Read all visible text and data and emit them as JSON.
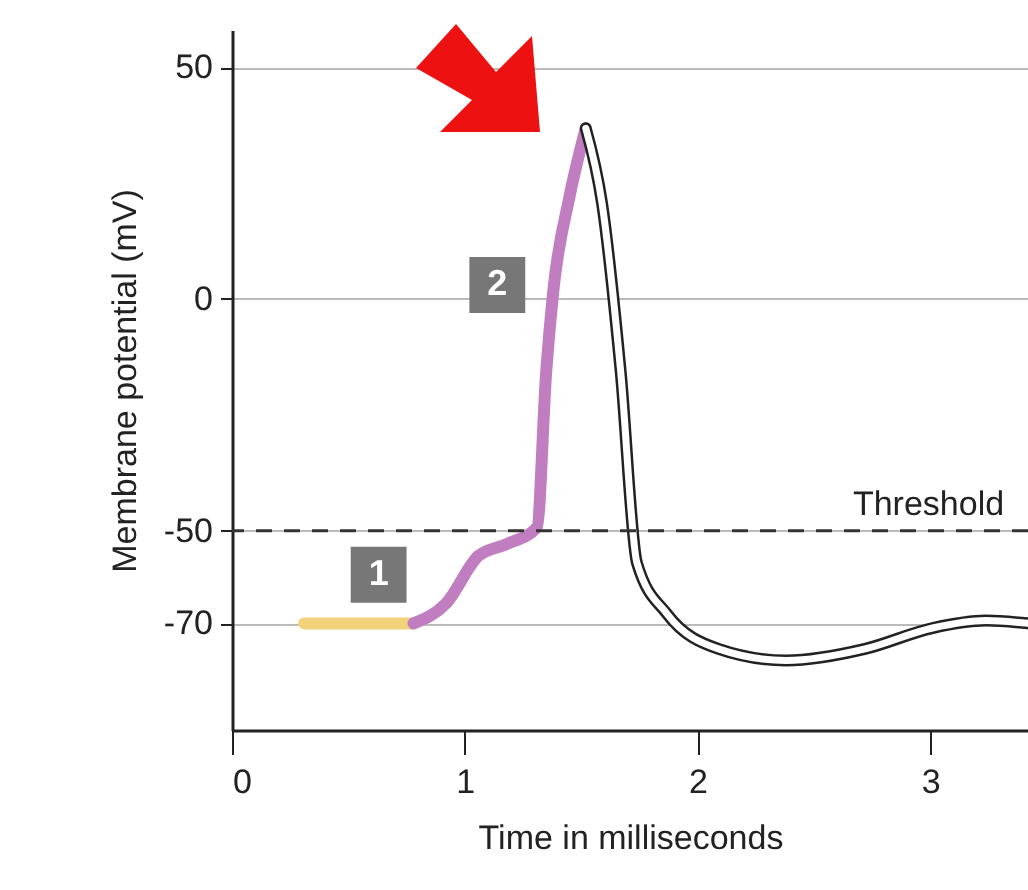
{
  "chart_data": {
    "type": "line",
    "xlabel": "Time in milliseconds",
    "ylabel": "Membrane potential (mV)",
    "xlim": [
      0,
      3.42
    ],
    "ylim": [
      -93,
      58
    ],
    "xticks": [
      0,
      1,
      2,
      3
    ],
    "yticks": [
      50,
      0,
      -50,
      -70
    ],
    "grid": "y",
    "series": [
      {
        "color": "#f2d27a",
        "x": [
          0.31,
          0.78
        ],
        "values": [
          -70,
          -70
        ]
      },
      {
        "color": "#c07ec0",
        "x": [
          0.78,
          0.92,
          1.06,
          1.18,
          1.31,
          1.35,
          1.38,
          1.45,
          1.52
        ],
        "values": [
          -70,
          -65.7,
          -55.4,
          -52.9,
          -49.3,
          -15.7,
          1.5,
          22,
          36.8
        ]
      },
      {
        "color": "#ffffff",
        "x": [
          1.52,
          1.59,
          1.67,
          1.74,
          1.87,
          2.09,
          2.38,
          2.72,
          3.01,
          3.24,
          3.42
        ],
        "values": [
          36.8,
          20.6,
          -15.7,
          -57,
          -68,
          -75.5,
          -78,
          -75.5,
          -71,
          -69.4,
          -70
        ]
      }
    ],
    "ref_lines": [
      {
        "axis": "y",
        "value": -50,
        "label": "Threshold",
        "color": "#333333",
        "line_style": "dashed"
      }
    ],
    "annotations": [
      {
        "text": "1",
        "x": 0.63,
        "y": -59.5
      },
      {
        "text": "2",
        "x": 1.14,
        "y": 3
      }
    ]
  }
}
